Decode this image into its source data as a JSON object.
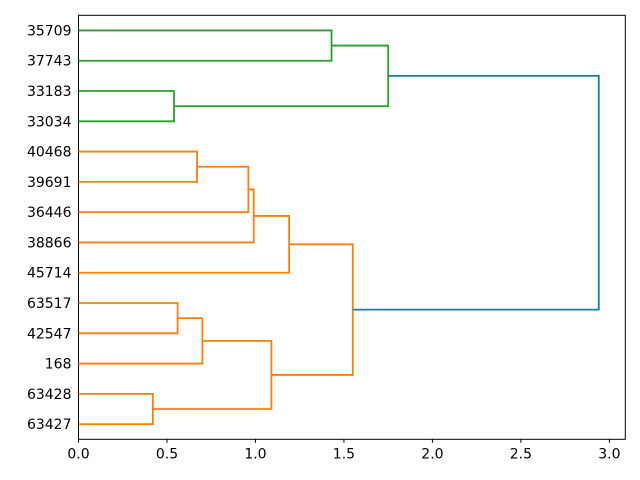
{
  "figure": {
    "background": "#ffffff"
  },
  "chart_data": {
    "type": "dendrogram",
    "orientation": "leaves-left-root-right",
    "title": "",
    "xlabel": "",
    "ylabel": "",
    "grid": false,
    "legend": null,
    "xlim": [
      0,
      3.09
    ],
    "x_ticks": [
      0.0,
      0.5,
      1.0,
      1.5,
      2.0,
      2.5,
      3.0
    ],
    "x_tick_labels": [
      "0.0",
      "0.5",
      "1.0",
      "1.5",
      "2.0",
      "2.5",
      "3.0"
    ],
    "leaf_labels": [
      "35709",
      "37743",
      "33183",
      "33034",
      "40468",
      "39691",
      "36446",
      "38866",
      "45714",
      "63517",
      "42547",
      "168",
      "63428",
      "63427"
    ],
    "links": [
      {
        "id": "gB",
        "children": [
          "33183",
          "33034"
        ],
        "height": 0.54,
        "color": "#2ca02c"
      },
      {
        "id": "gA",
        "children": [
          "35709",
          "37743"
        ],
        "height": 1.43,
        "color": "#2ca02c"
      },
      {
        "id": "gRoot",
        "children": [
          "gA",
          "gB"
        ],
        "height": 1.75,
        "color": "#2ca02c"
      },
      {
        "id": "oA",
        "children": [
          "40468",
          "39691"
        ],
        "height": 0.67,
        "color": "#ff7f0e"
      },
      {
        "id": "oB",
        "children": [
          "oA",
          "36446"
        ],
        "height": 0.96,
        "color": "#ff7f0e"
      },
      {
        "id": "oC",
        "children": [
          "oB",
          "38866"
        ],
        "height": 0.99,
        "color": "#ff7f0e"
      },
      {
        "id": "oD",
        "children": [
          "oC",
          "45714"
        ],
        "height": 1.19,
        "color": "#ff7f0e"
      },
      {
        "id": "oE",
        "children": [
          "63517",
          "42547"
        ],
        "height": 0.56,
        "color": "#ff7f0e"
      },
      {
        "id": "oF",
        "children": [
          "oE",
          "168"
        ],
        "height": 0.7,
        "color": "#ff7f0e"
      },
      {
        "id": "oG",
        "children": [
          "63428",
          "63427"
        ],
        "height": 0.42,
        "color": "#ff7f0e"
      },
      {
        "id": "oH",
        "children": [
          "oF",
          "oG"
        ],
        "height": 1.09,
        "color": "#ff7f0e"
      },
      {
        "id": "oRoot",
        "children": [
          "oD",
          "oH"
        ],
        "height": 1.55,
        "color": "#ff7f0e"
      },
      {
        "id": "root",
        "children": [
          "gRoot",
          "oRoot"
        ],
        "height": 2.94,
        "color": "#1f77b4"
      }
    ],
    "colors": {
      "cluster_green": "#2ca02c",
      "cluster_orange": "#ff7f0e",
      "above_threshold_blue": "#1f77b4",
      "spine": "#000000",
      "tick_label": "#000000"
    }
  }
}
